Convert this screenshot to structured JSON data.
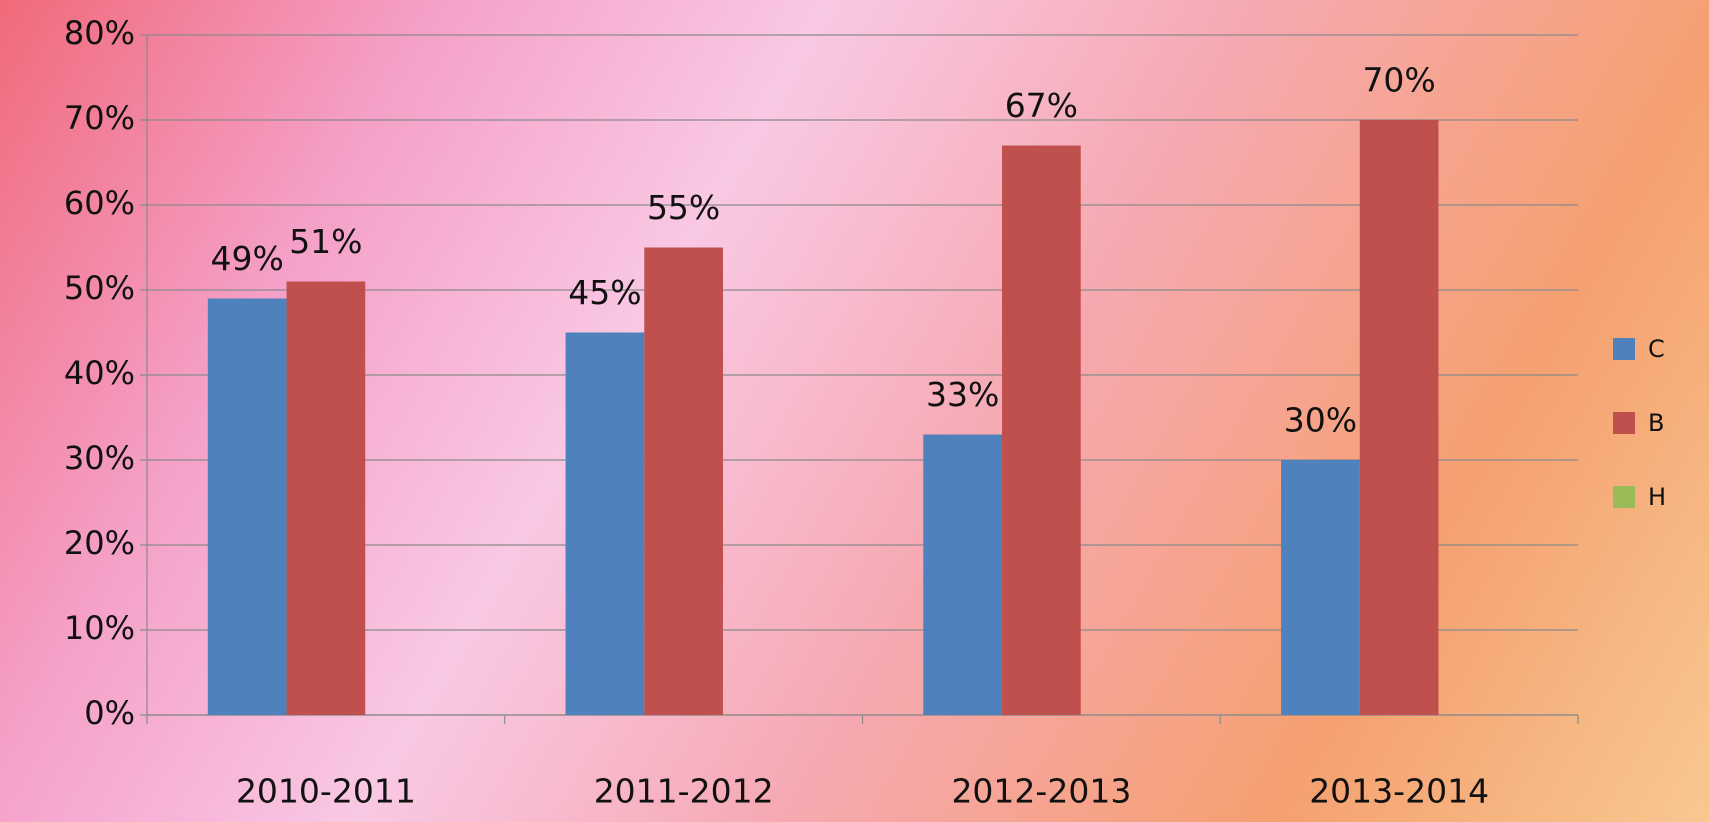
{
  "chart_data": {
    "type": "bar",
    "categories": [
      "2010-2011",
      "2011-2012",
      "2012-2013",
      "2013-2014"
    ],
    "series": [
      {
        "name": "С",
        "color": "#4f81bd",
        "values": [
          49,
          45,
          33,
          30
        ],
        "value_labels": [
          "49%",
          "45%",
          "33%",
          "30%"
        ]
      },
      {
        "name": "В",
        "color": "#c0504d",
        "values": [
          51,
          55,
          67,
          70
        ],
        "value_labels": [
          "51%",
          "55%",
          "67%",
          "70%"
        ]
      },
      {
        "name": "Н",
        "color": "#9bbb59",
        "values": [
          null,
          null,
          null,
          null
        ]
      }
    ],
    "ylim": [
      0,
      80
    ],
    "yticks": [
      {
        "value": 0,
        "label": "0%"
      },
      {
        "value": 10,
        "label": "10%"
      },
      {
        "value": 20,
        "label": "20%"
      },
      {
        "value": 30,
        "label": "30%"
      },
      {
        "value": 40,
        "label": "40%"
      },
      {
        "value": 50,
        "label": "50%"
      },
      {
        "value": 60,
        "label": "60%"
      },
      {
        "value": 70,
        "label": "70%"
      },
      {
        "value": 80,
        "label": "80%"
      }
    ],
    "grid": true,
    "legend": "right"
  }
}
